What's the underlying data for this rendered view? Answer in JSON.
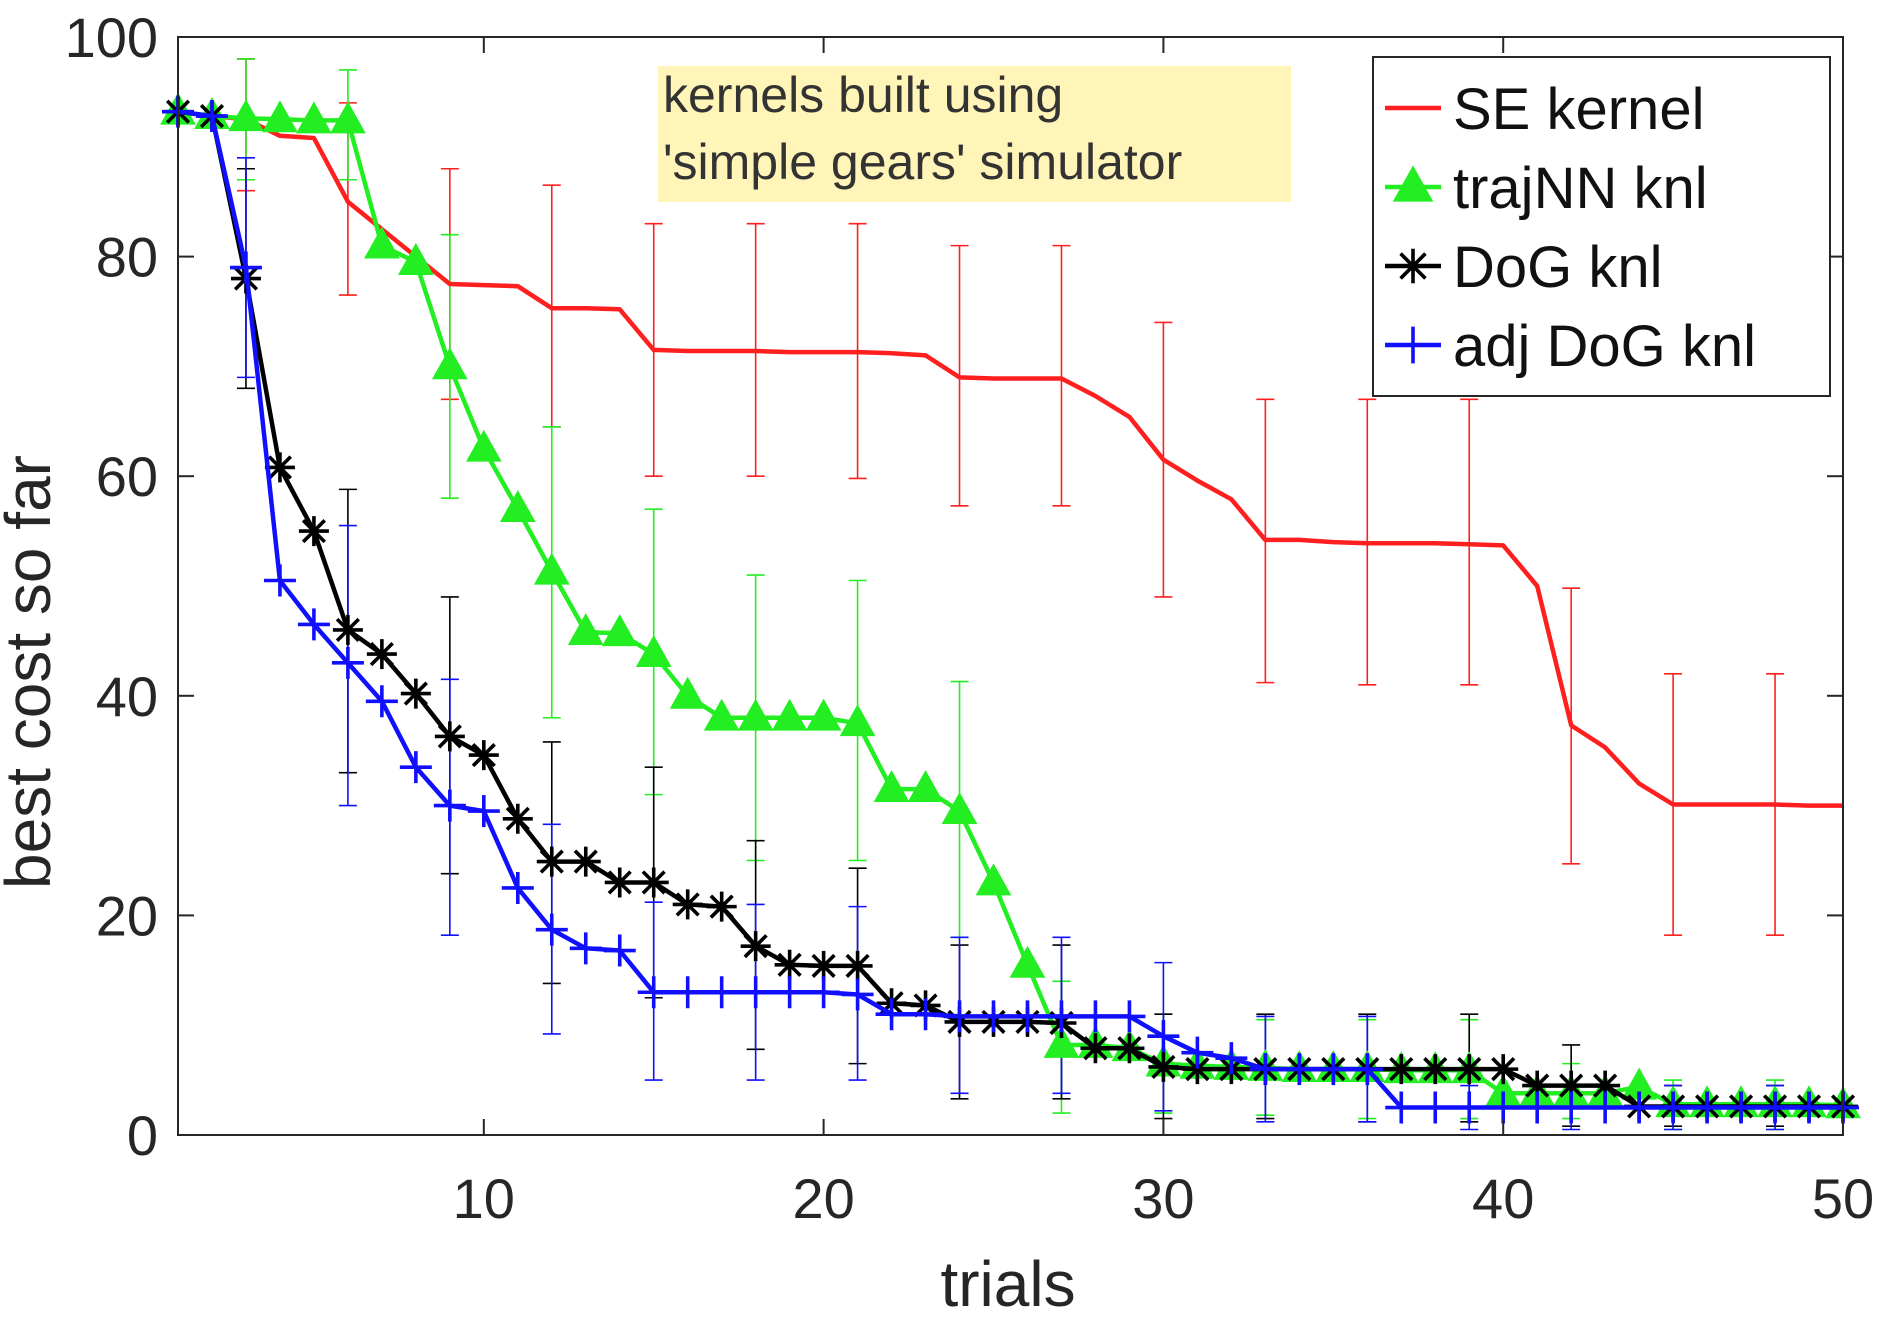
{
  "chart_data": {
    "type": "line",
    "xlabel": "trials",
    "ylabel": "best cost so far",
    "xlim": [
      1,
      50
    ],
    "ylim": [
      0,
      100
    ],
    "xticks": [
      10,
      20,
      30,
      40,
      50
    ],
    "yticks": [
      0,
      20,
      40,
      60,
      80,
      100
    ],
    "grid": false,
    "legend_position": "top-right",
    "annotation": {
      "lines": [
        "kernels built using",
        "'simple gears' simulator"
      ],
      "background": "#fff5b8"
    },
    "x": [
      1,
      2,
      3,
      4,
      5,
      6,
      7,
      8,
      9,
      10,
      11,
      12,
      13,
      14,
      15,
      16,
      17,
      18,
      19,
      20,
      21,
      22,
      23,
      24,
      25,
      26,
      27,
      28,
      29,
      30,
      31,
      32,
      33,
      34,
      35,
      36,
      37,
      38,
      39,
      40,
      41,
      42,
      43,
      44,
      45,
      46,
      47,
      48,
      49,
      50
    ],
    "series": [
      {
        "name": "SE kernel",
        "color": "#ff1f1f",
        "marker": "none",
        "values": [
          93.2,
          92.8,
          92.5,
          91.0,
          90.8,
          85.0,
          82.5,
          80.0,
          77.5,
          77.4,
          77.3,
          75.3,
          75.3,
          75.2,
          71.5,
          71.4,
          71.4,
          71.4,
          71.3,
          71.3,
          71.3,
          71.2,
          71.0,
          69.0,
          68.9,
          68.9,
          68.9,
          67.3,
          65.4,
          61.5,
          59.6,
          57.9,
          54.2,
          54.2,
          54.0,
          53.9,
          53.9,
          53.9,
          53.8,
          53.7,
          50.0,
          37.3,
          35.3,
          32.0,
          30.1,
          30.1,
          30.1,
          30.1,
          30.0,
          30.0
        ],
        "errorbars": [
          {
            "x": 3,
            "low": 86,
            "high": 98
          },
          {
            "x": 6,
            "low": 76.5,
            "high": 94
          },
          {
            "x": 9,
            "low": 67,
            "high": 88
          },
          {
            "x": 12,
            "low": 64.5,
            "high": 86.5
          },
          {
            "x": 15,
            "low": 60,
            "high": 83
          },
          {
            "x": 18,
            "low": 60,
            "high": 83
          },
          {
            "x": 21,
            "low": 59.8,
            "high": 83
          },
          {
            "x": 24,
            "low": 57.3,
            "high": 81
          },
          {
            "x": 27,
            "low": 57.3,
            "high": 81
          },
          {
            "x": 30,
            "low": 49,
            "high": 74
          },
          {
            "x": 33,
            "low": 41.2,
            "high": 67
          },
          {
            "x": 36,
            "low": 41,
            "high": 67
          },
          {
            "x": 39,
            "low": 41,
            "high": 67
          },
          {
            "x": 42,
            "low": 24.7,
            "high": 49.8
          },
          {
            "x": 45,
            "low": 18.2,
            "high": 42
          },
          {
            "x": 48,
            "low": 18.2,
            "high": 42
          }
        ]
      },
      {
        "name": "trajNN knl",
        "color": "#22ee22",
        "marker": "triangle",
        "values": [
          93.2,
          92.8,
          92.6,
          92.5,
          92.4,
          92.4,
          81.0,
          79.5,
          70.0,
          62.5,
          57.0,
          51.3,
          45.8,
          45.7,
          43.8,
          40.0,
          38.0,
          38.0,
          38.0,
          38.0,
          37.5,
          31.5,
          31.5,
          29.5,
          23.0,
          15.5,
          8.2,
          8.2,
          7.9,
          6.5,
          6.3,
          6.2,
          6.1,
          6.0,
          6.0,
          6.0,
          5.9,
          5.9,
          5.9,
          3.8,
          3.8,
          3.8,
          3.8,
          4.4,
          2.8,
          2.8,
          2.8,
          2.8,
          2.8,
          2.7
        ],
        "errorbars": [
          {
            "x": 3,
            "low": 87,
            "high": 98
          },
          {
            "x": 6,
            "low": 87,
            "high": 97
          },
          {
            "x": 9,
            "low": 58,
            "high": 82
          },
          {
            "x": 12,
            "low": 38,
            "high": 64.5
          },
          {
            "x": 15,
            "low": 31,
            "high": 57
          },
          {
            "x": 18,
            "low": 25,
            "high": 51
          },
          {
            "x": 21,
            "low": 25,
            "high": 50.5
          },
          {
            "x": 24,
            "low": 18,
            "high": 41.3
          },
          {
            "x": 27,
            "low": 2,
            "high": 14
          },
          {
            "x": 30,
            "low": 2,
            "high": 11
          },
          {
            "x": 33,
            "low": 1.8,
            "high": 10.5
          },
          {
            "x": 36,
            "low": 1.5,
            "high": 10.5
          },
          {
            "x": 39,
            "low": 1.5,
            "high": 10.5
          },
          {
            "x": 42,
            "low": 1.5,
            "high": 6.5
          },
          {
            "x": 45,
            "low": 0.5,
            "high": 5
          },
          {
            "x": 48,
            "low": 0.5,
            "high": 5
          }
        ]
      },
      {
        "name": "DoG knl",
        "color": "#000000",
        "marker": "asterisk",
        "values": [
          93.2,
          92.8,
          78.0,
          60.8,
          55.0,
          46.0,
          43.8,
          40.2,
          36.3,
          34.6,
          28.8,
          24.9,
          24.9,
          23.0,
          23.0,
          21.0,
          20.8,
          17.2,
          15.5,
          15.4,
          15.4,
          12.0,
          11.8,
          10.3,
          10.3,
          10.3,
          10.2,
          7.9,
          7.9,
          6.2,
          6.0,
          6.0,
          6.0,
          6.0,
          6.0,
          6.0,
          6.0,
          6.0,
          6.0,
          6.0,
          4.5,
          4.5,
          4.5,
          2.6,
          2.6,
          2.6,
          2.6,
          2.6,
          2.6,
          2.6
        ],
        "errorbars": [
          {
            "x": 3,
            "low": 68,
            "high": 88
          },
          {
            "x": 6,
            "low": 33,
            "high": 58.8
          },
          {
            "x": 9,
            "low": 23.8,
            "high": 49
          },
          {
            "x": 12,
            "low": 13.8,
            "high": 35.8
          },
          {
            "x": 15,
            "low": 12.5,
            "high": 33.5
          },
          {
            "x": 18,
            "low": 7.8,
            "high": 26.8
          },
          {
            "x": 21,
            "low": 6.5,
            "high": 24.3
          },
          {
            "x": 24,
            "low": 3.3,
            "high": 17.3
          },
          {
            "x": 27,
            "low": 3.3,
            "high": 17.3
          },
          {
            "x": 30,
            "low": 1.5,
            "high": 11
          },
          {
            "x": 33,
            "low": 1.5,
            "high": 11
          },
          {
            "x": 36,
            "low": 1.2,
            "high": 11
          },
          {
            "x": 39,
            "low": 1.2,
            "high": 11
          },
          {
            "x": 42,
            "low": 0.8,
            "high": 8.2
          },
          {
            "x": 45,
            "low": 0.8,
            "high": 4.5
          },
          {
            "x": 48,
            "low": 0.8,
            "high": 4.5
          }
        ]
      },
      {
        "name": "adj DoG knl",
        "color": "#1010ff",
        "marker": "plus",
        "values": [
          93.2,
          92.8,
          79.0,
          50.5,
          46.5,
          43.0,
          39.5,
          33.5,
          30.0,
          29.5,
          22.5,
          18.7,
          17.0,
          16.8,
          13.0,
          13.0,
          13.0,
          13.0,
          13.0,
          13.0,
          12.8,
          11.0,
          11.0,
          10.8,
          10.8,
          10.8,
          10.8,
          10.8,
          10.8,
          9.0,
          7.5,
          7.0,
          6.0,
          6.0,
          6.0,
          6.0,
          2.5,
          2.5,
          2.5,
          2.5,
          2.5,
          2.5,
          2.5,
          2.5,
          2.5,
          2.5,
          2.5,
          2.5,
          2.5,
          2.5
        ],
        "errorbars": [
          {
            "x": 3,
            "low": 69,
            "high": 89
          },
          {
            "x": 6,
            "low": 30,
            "high": 55.5
          },
          {
            "x": 9,
            "low": 18.2,
            "high": 41.5
          },
          {
            "x": 12,
            "low": 9.2,
            "high": 28.3
          },
          {
            "x": 15,
            "low": 5,
            "high": 21.2
          },
          {
            "x": 18,
            "low": 5,
            "high": 21
          },
          {
            "x": 21,
            "low": 5,
            "high": 20.8
          },
          {
            "x": 24,
            "low": 3.8,
            "high": 18
          },
          {
            "x": 27,
            "low": 3.8,
            "high": 18
          },
          {
            "x": 30,
            "low": 2.2,
            "high": 15.7
          },
          {
            "x": 33,
            "low": 1.2,
            "high": 10.8
          },
          {
            "x": 36,
            "low": 1.2,
            "high": 10.8
          },
          {
            "x": 39,
            "low": 0.5,
            "high": 4.5
          },
          {
            "x": 42,
            "low": 0.5,
            "high": 4.5
          },
          {
            "x": 45,
            "low": 0.5,
            "high": 4.5
          },
          {
            "x": 48,
            "low": 0.5,
            "high": 4.5
          }
        ]
      }
    ]
  }
}
